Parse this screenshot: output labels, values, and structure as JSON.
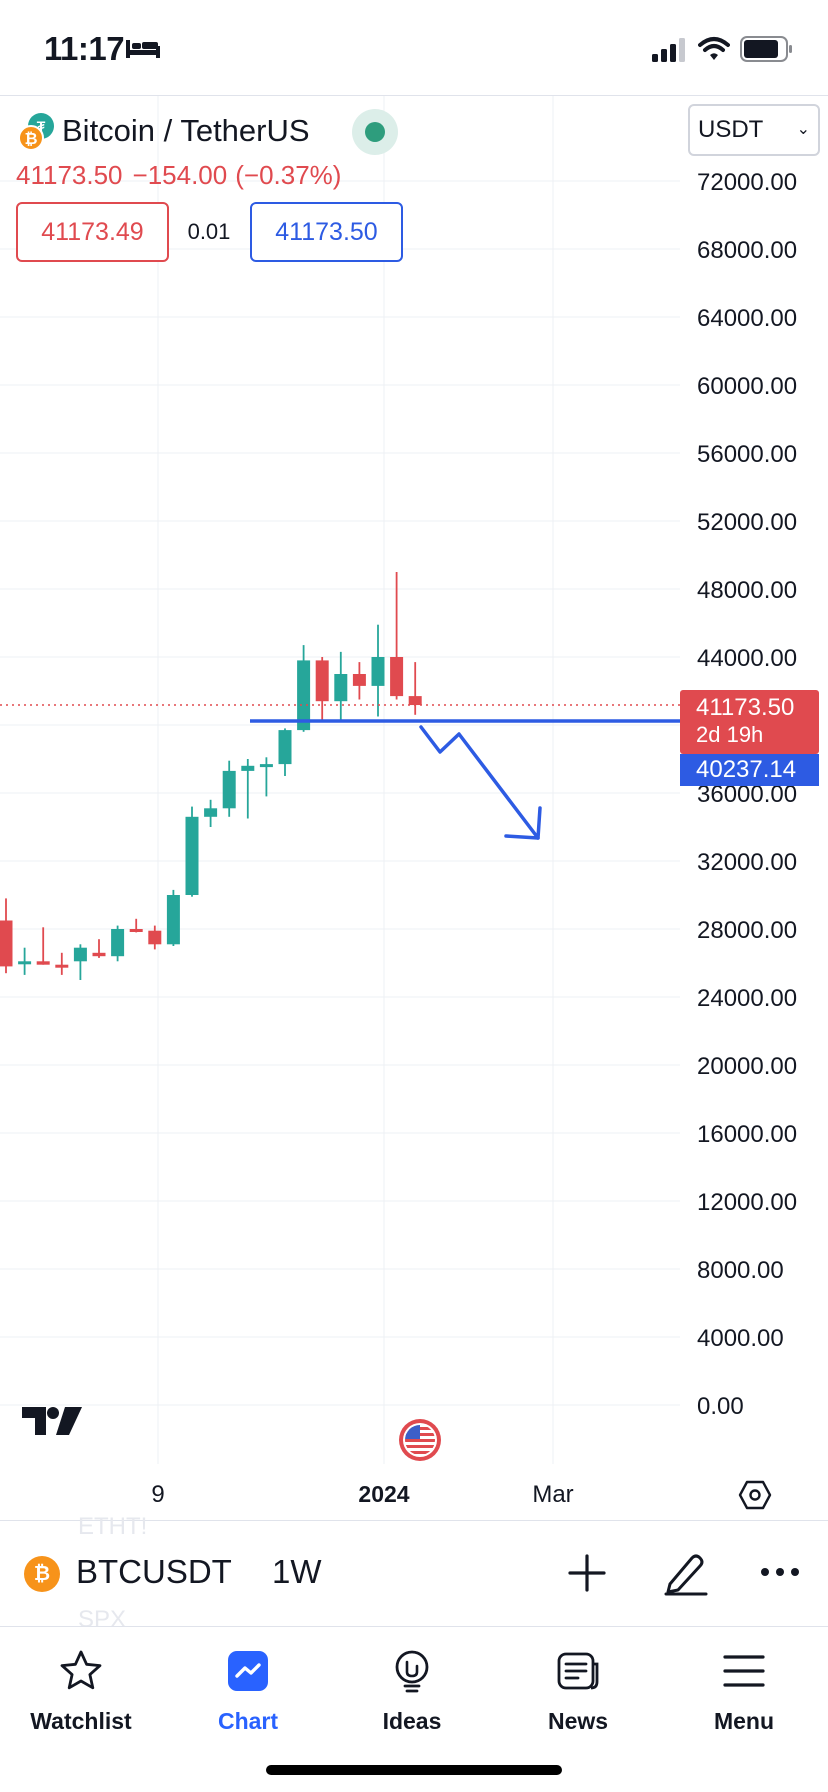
{
  "status_bar": {
    "time": "11:17",
    "icons": [
      "bed-icon",
      "cellular-signal-icon",
      "wifi-icon",
      "battery-icon"
    ]
  },
  "header": {
    "symbol_title": "Bitcoin / TetherUS",
    "last_price": "41173.50",
    "change": "−154.00",
    "change_pct": "(−0.37%)",
    "bid": "41173.49",
    "spread": "0.01",
    "ask": "41173.50",
    "currency": "USDT",
    "coin_glyph": "₿",
    "pair_glyph": "₮"
  },
  "price_tags": {
    "last_price": "41173.50",
    "countdown": "2d 19h",
    "hline_price": "40237.14"
  },
  "toolbar": {
    "symbol": "BTCUSDT",
    "interval": "1W",
    "ghost_above": "ETHT!",
    "ghost_below": "SPX"
  },
  "bottom_nav": [
    {
      "label": "Watchlist",
      "icon": "star-icon",
      "active": false
    },
    {
      "label": "Chart",
      "icon": "chart-icon",
      "active": true
    },
    {
      "label": "Ideas",
      "icon": "lightbulb-icon",
      "active": false
    },
    {
      "label": "News",
      "icon": "news-icon",
      "active": false
    },
    {
      "label": "Menu",
      "icon": "hamburger-menu-icon",
      "active": false
    }
  ],
  "colors": {
    "up": "#26a69a",
    "down": "#e04a4f",
    "drawing": "#2d5be3",
    "accent": "#2962ff",
    "grid": "#eef0f4"
  },
  "chart_data": {
    "type": "candlestick",
    "symbol": "BTCUSDT",
    "interval": "1W",
    "y_ticks": [
      "72000.00",
      "68000.00",
      "64000.00",
      "60000.00",
      "56000.00",
      "52000.00",
      "48000.00",
      "44000.00",
      "36000.00",
      "32000.00",
      "28000.00",
      "24000.00",
      "20000.00",
      "16000.00",
      "12000.00",
      "8000.00",
      "4000.00",
      "0.00"
    ],
    "ylim": [
      0,
      74000
    ],
    "x_tick_labels": [
      {
        "label": "9",
        "bold": false
      },
      {
        "label": "2024",
        "bold": true
      },
      {
        "label": "Mar",
        "bold": false
      }
    ],
    "grid": true,
    "last_price": 41173.5,
    "horizontal_line": 40237.14,
    "candles": [
      {
        "o": 28500,
        "h": 29800,
        "l": 25400,
        "c": 25800
      },
      {
        "o": 26000,
        "h": 26900,
        "l": 25300,
        "c": 26100
      },
      {
        "o": 26100,
        "h": 28100,
        "l": 25900,
        "c": 25900
      },
      {
        "o": 25900,
        "h": 26600,
        "l": 25300,
        "c": 25800
      },
      {
        "o": 26100,
        "h": 27100,
        "l": 25000,
        "c": 26900
      },
      {
        "o": 26600,
        "h": 27400,
        "l": 26300,
        "c": 26400
      },
      {
        "o": 26400,
        "h": 28200,
        "l": 26100,
        "c": 28000
      },
      {
        "o": 28000,
        "h": 28600,
        "l": 27800,
        "c": 27900
      },
      {
        "o": 27900,
        "h": 28200,
        "l": 26800,
        "c": 27100
      },
      {
        "o": 27100,
        "h": 30300,
        "l": 27000,
        "c": 30000
      },
      {
        "o": 30000,
        "h": 35200,
        "l": 29900,
        "c": 34600
      },
      {
        "o": 34600,
        "h": 35600,
        "l": 34000,
        "c": 35100
      },
      {
        "o": 35100,
        "h": 37900,
        "l": 34600,
        "c": 37300
      },
      {
        "o": 37300,
        "h": 38000,
        "l": 34500,
        "c": 37600
      },
      {
        "o": 37600,
        "h": 38100,
        "l": 35800,
        "c": 37700
      },
      {
        "o": 37700,
        "h": 39800,
        "l": 37000,
        "c": 39700
      },
      {
        "o": 39700,
        "h": 44700,
        "l": 39600,
        "c": 43800
      },
      {
        "o": 43800,
        "h": 44000,
        "l": 40300,
        "c": 41400
      },
      {
        "o": 41400,
        "h": 44300,
        "l": 40200,
        "c": 43000
      },
      {
        "o": 43000,
        "h": 43700,
        "l": 41500,
        "c": 42300
      },
      {
        "o": 42300,
        "h": 45900,
        "l": 40500,
        "c": 44000
      },
      {
        "o": 44000,
        "h": 49000,
        "l": 41500,
        "c": 41700
      },
      {
        "o": 41700,
        "h": 43700,
        "l": 40600,
        "c": 41174
      }
    ]
  }
}
